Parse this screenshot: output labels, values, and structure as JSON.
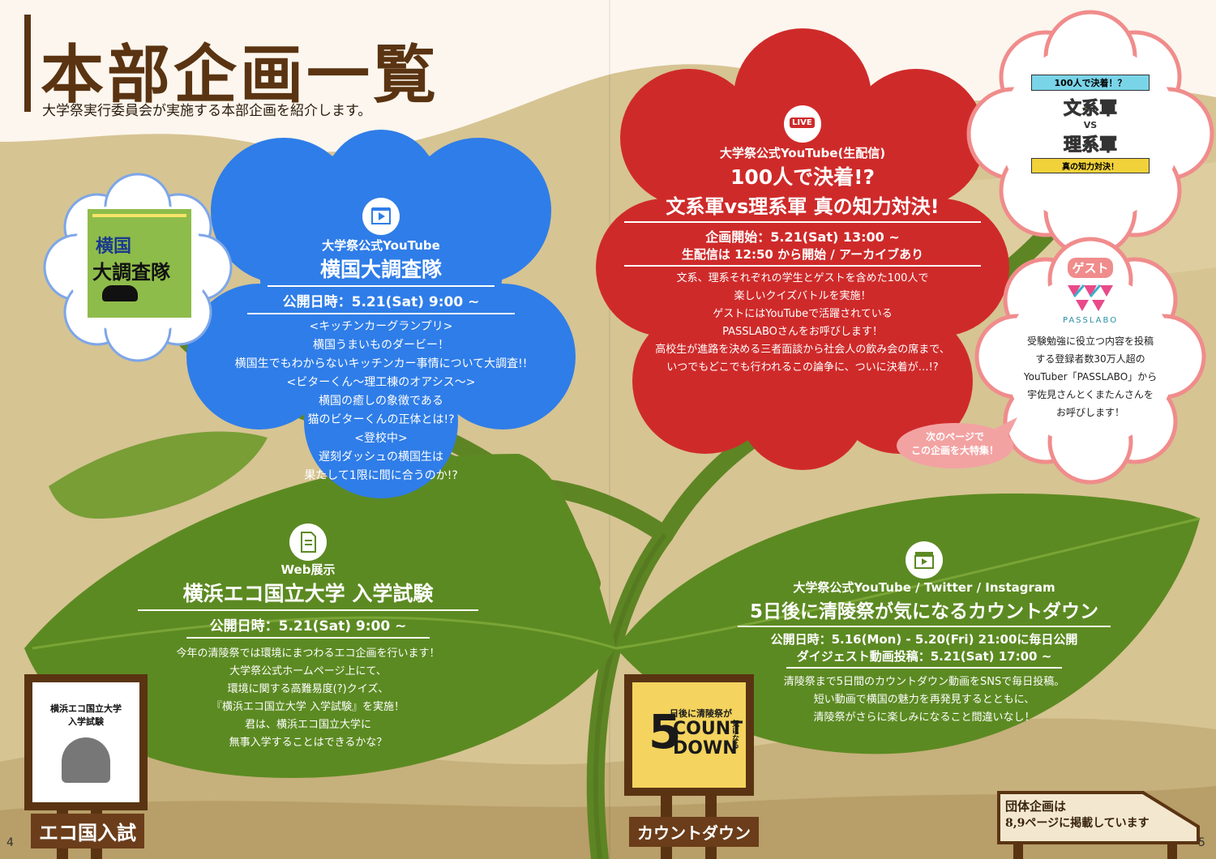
{
  "header": {
    "title": "本部企画一覧",
    "subtitle": "大学祭実行委員会が実施する本部企画を紹介します。"
  },
  "blue_flower": {
    "channel": "大学祭公式YouTube",
    "title": "横国大調査隊",
    "date": "公開日時：5.21(Sat) 9:00 ~",
    "lines": [
      "<キッチンカーグランプリ>",
      "横国うまいものダービー！",
      "横国生でもわからないキッチンカー事情について大調査!!",
      "<ビターくん〜理工棟のオアシス〜>",
      "横国の癒しの象徴である",
      "猫のビターくんの正体とは!?",
      "<登校中>",
      "遅刻ダッシュの横国生は",
      "果たして1限に間に合うのか!?"
    ],
    "logo_text_1": "横国",
    "logo_text_2": "大調査隊"
  },
  "red_flower": {
    "live_badge": "LIVE",
    "channel": "大学祭公式YouTube(生配信)",
    "title_1": "100人で決着!?",
    "title_2": "文系軍vs理系軍 真の知力対決!",
    "date_1": "企画開始：5.21(Sat) 13:00 ~",
    "date_2": "生配信は 12:50 から開始 / アーカイブあり",
    "lines": [
      "文系、理系それぞれの学生とゲストを含めた100人で",
      "楽しいクイズバトルを実施！",
      "ゲストにはYouTubeで活躍されている",
      "PASSLABOさんをお呼びします！",
      "高校生が進路を決める三者面談から社会人の飲み会の席まで、",
      "いつでもどこでも行われるこの論争に、ついに決着が…!?"
    ],
    "logo_top": "100人で決着！？",
    "logo_mid_1": "文系軍",
    "logo_vs": "VS",
    "logo_mid_2": "理系軍",
    "logo_bottom": "真の知力対決！"
  },
  "guest": {
    "label": "ゲスト",
    "logo_name": "PASSLABO",
    "lines": [
      "受験勉強に役立つ内容を投稿",
      "する登録者数30万人超の",
      "YouTuber「PASSLABO」から",
      "宇佐見さんとくまたんさんを",
      "お呼びします！"
    ]
  },
  "next_page_note": {
    "line_1": "次のページで",
    "line_2": "この企画を大特集！"
  },
  "left_leaf": {
    "label": "Web展示",
    "title": "横浜エコ国立大学 入学試験",
    "date": "公開日時：5.21(Sat) 9:00 ~",
    "lines": [
      "今年の清陵祭では環境にまつわるエコ企画を行います！",
      "大学祭公式ホームページ上にて、",
      "環境に関する高難易度(?)クイズ、",
      "『横浜エコ国立大学 入学試験』を実施！",
      "君は、横浜エコ国立大学に",
      "無事入学することはできるかな？"
    ]
  },
  "right_leaf": {
    "channel": "大学祭公式YouTube / Twitter / Instagram",
    "title": "5日後に清陵祭が気になるカウントダウン",
    "date_1": "公開日時：5.16(Mon) - 5.20(Fri) 21:00に毎日公開",
    "date_2": "ダイジェスト動画投稿：5.21(Sat) 17:00 ~",
    "lines": [
      "清陵祭まで5日間のカウントダウン動画をSNSで毎日投稿。",
      "短い動画で横国の魅力を再発見するとともに、",
      "清陵祭がさらに楽しみになること間違いなし！"
    ]
  },
  "sign_left": {
    "board_title_1": "横浜エコ国立大学",
    "board_title_2": "入学試験",
    "label": "エコ国入試"
  },
  "sign_right": {
    "logo_num": "5",
    "logo_top": "日後に清陵祭が",
    "logo_count": "COUNT",
    "logo_down": "DOWN",
    "logo_side": "気になる",
    "label": "カウントダウン"
  },
  "arrow_sign": {
    "line_1": "団体企画は",
    "line_2": "8,9ページに掲載しています"
  },
  "page_numbers": {
    "left": "4",
    "right": "5"
  },
  "colors": {
    "background": "#d6c493",
    "header": "#fcf6ee",
    "blue_flower": "#2f7de8",
    "red_flower": "#cf2a2a",
    "pink_flower": "#f3a2a2",
    "leaf": "#5c8a22",
    "stem": "#6a8f2c",
    "title_brown": "#5a3412"
  },
  "icons": [
    "video-play-icon",
    "live-camera-icon",
    "document-icon",
    "clapperboard-icon",
    "apple-icon",
    "book-icon",
    "cat-icon"
  ]
}
